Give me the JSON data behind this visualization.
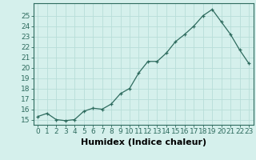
{
  "xlabel": "Humidex (Indice chaleur)",
  "x": [
    0,
    1,
    2,
    3,
    4,
    5,
    6,
    7,
    8,
    9,
    10,
    11,
    12,
    13,
    14,
    15,
    16,
    17,
    18,
    19,
    20,
    21,
    22,
    23
  ],
  "y": [
    15.3,
    15.6,
    15.0,
    14.9,
    15.0,
    15.8,
    16.1,
    16.0,
    16.5,
    17.5,
    18.0,
    19.5,
    20.6,
    20.6,
    21.4,
    22.5,
    23.2,
    24.0,
    25.0,
    25.6,
    24.4,
    23.2,
    21.7,
    20.4
  ],
  "line_color": "#2e6b5e",
  "marker": "+",
  "bg_color": "#d5f0ec",
  "grid_color": "#b8ddd8",
  "ylim_min": 14.5,
  "ylim_max": 26.2,
  "yticks": [
    15,
    16,
    17,
    18,
    19,
    20,
    21,
    22,
    23,
    24,
    25
  ],
  "xtick_fontsize": 6.5,
  "ytick_fontsize": 6.5,
  "xlabel_fontsize": 8,
  "tick_color": "#2e6b5e",
  "spine_color": "#2e6b5e",
  "xlabel_fontweight": "bold"
}
